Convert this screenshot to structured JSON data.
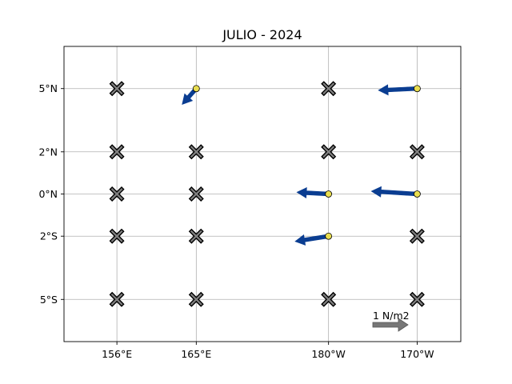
{
  "chart_data": {
    "type": "scatter",
    "title": "JULIO - 2024",
    "xlabel": "",
    "ylabel": "",
    "grid": true,
    "xlim": [
      152,
      182
    ],
    "ylim": [
      -7,
      7
    ],
    "x_ticks": [
      {
        "value": 156,
        "label": "156°E"
      },
      {
        "value": 162,
        "label": "165°E"
      },
      {
        "value": 172,
        "label": "180°W"
      },
      {
        "value": 178.7,
        "label": "170°W"
      }
    ],
    "y_ticks": [
      {
        "value": 5,
        "label": "5°N"
      },
      {
        "value": 2,
        "label": "2°N"
      },
      {
        "value": 0,
        "label": "0°N"
      },
      {
        "value": -2,
        "label": "2°S"
      },
      {
        "value": -5,
        "label": "5°S"
      }
    ],
    "missing_markers": [
      {
        "x": 156,
        "y": 5
      },
      {
        "x": 156,
        "y": 2
      },
      {
        "x": 156,
        "y": 0
      },
      {
        "x": 156,
        "y": -2
      },
      {
        "x": 156,
        "y": -5
      },
      {
        "x": 162,
        "y": 2
      },
      {
        "x": 162,
        "y": 0
      },
      {
        "x": 162,
        "y": -2
      },
      {
        "x": 162,
        "y": -5
      },
      {
        "x": 172,
        "y": 5
      },
      {
        "x": 172,
        "y": 2
      },
      {
        "x": 172,
        "y": -5
      },
      {
        "x": 178.7,
        "y": 2
      },
      {
        "x": 178.7,
        "y": -2
      },
      {
        "x": 178.7,
        "y": -5
      }
    ],
    "vectors": [
      {
        "x": 162,
        "y": 5,
        "u": -0.4,
        "v": -0.45
      },
      {
        "x": 172,
        "y": 0,
        "u": -0.9,
        "v": 0.05
      },
      {
        "x": 172,
        "y": -2,
        "u": -0.95,
        "v": -0.15
      },
      {
        "x": 178.7,
        "y": 5,
        "u": -1.1,
        "v": -0.05
      },
      {
        "x": 178.7,
        "y": 0,
        "u": -1.3,
        "v": 0.08
      }
    ],
    "reference_vector": {
      "label": "1 N/m2",
      "u": 1,
      "v": 0
    },
    "colors": {
      "vector": "#0a3d91",
      "station": "#e8dd4f",
      "missing_fill": "#808080",
      "reference": "#777777"
    }
  }
}
